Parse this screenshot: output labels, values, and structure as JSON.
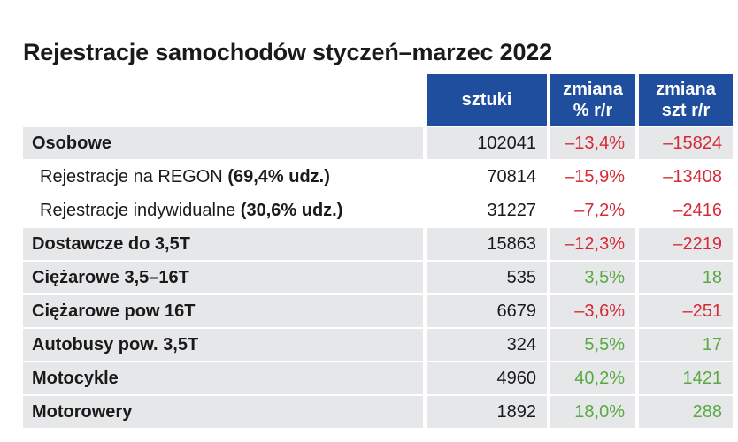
{
  "chart_data": {
    "type": "table",
    "title": "Rejestracje samochodów styczeń–marzec 2022",
    "columns": [
      "sztuki",
      "zmiana % r/r",
      "zmiana szt r/r"
    ],
    "column_headers": [
      {
        "line1": "sztuki",
        "line2": ""
      },
      {
        "line1": "zmiana",
        "line2": "% r/r"
      },
      {
        "line1": "zmiana",
        "line2": "szt r/r"
      }
    ],
    "rows": [
      {
        "label": "Osobowe",
        "share": "",
        "sub": false,
        "shaded": true,
        "sztuki": "102041",
        "zmiana_pct": "–13,4%",
        "zmiana_szt": "–15824",
        "sign": "neg"
      },
      {
        "label": "Rejestracje na REGON",
        "share": "(69,4% udz.)",
        "sub": true,
        "shaded": false,
        "sztuki": "70814",
        "zmiana_pct": "–15,9%",
        "zmiana_szt": "–13408",
        "sign": "neg"
      },
      {
        "label": "Rejestracje indywidualne",
        "share": "(30,6% udz.)",
        "sub": true,
        "shaded": false,
        "sztuki": "31227",
        "zmiana_pct": "–7,2%",
        "zmiana_szt": "–2416",
        "sign": "neg"
      },
      {
        "label": "Dostawcze do 3,5T",
        "share": "",
        "sub": false,
        "shaded": true,
        "sztuki": "15863",
        "zmiana_pct": "–12,3%",
        "zmiana_szt": "–2219",
        "sign": "neg"
      },
      {
        "label": "Ciężarowe 3,5–16T",
        "share": "",
        "sub": false,
        "shaded": true,
        "sztuki": "535",
        "zmiana_pct": "3,5%",
        "zmiana_szt": "18",
        "sign": "pos"
      },
      {
        "label": "Ciężarowe pow 16T",
        "share": "",
        "sub": false,
        "shaded": true,
        "sztuki": "6679",
        "zmiana_pct": "–3,6%",
        "zmiana_szt": "–251",
        "sign": "neg"
      },
      {
        "label": "Autobusy pow. 3,5T",
        "share": "",
        "sub": false,
        "shaded": true,
        "sztuki": "324",
        "zmiana_pct": "5,5%",
        "zmiana_szt": "17",
        "sign": "pos"
      },
      {
        "label": "Motocykle",
        "share": "",
        "sub": false,
        "shaded": true,
        "sztuki": "4960",
        "zmiana_pct": "40,2%",
        "zmiana_szt": "1421",
        "sign": "pos"
      },
      {
        "label": "Motorowery",
        "share": "",
        "sub": false,
        "shaded": true,
        "sztuki": "1892",
        "zmiana_pct": "18,0%",
        "zmiana_szt": "288",
        "sign": "pos"
      }
    ]
  },
  "colors": {
    "header_bg": "#1f4e9e",
    "row_shade": "#e6e7e9",
    "negative": "#d62a36",
    "positive": "#5aa842"
  }
}
